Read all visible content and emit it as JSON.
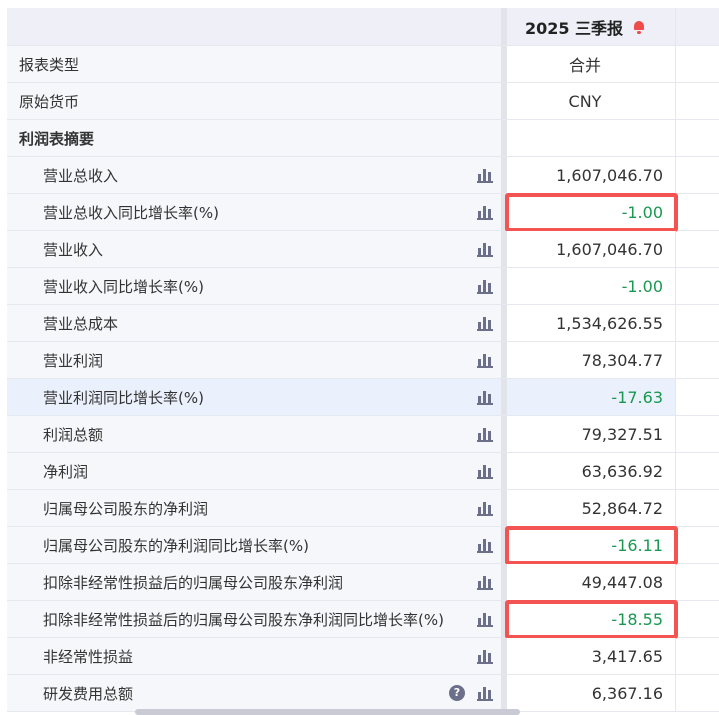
{
  "header": {
    "period": "2025 三季报",
    "alert_icon": "bell-icon",
    "alert_color": "#ef4b4b"
  },
  "rows": [
    {
      "label": "报表类型",
      "value": "合并",
      "type": "meta"
    },
    {
      "label": "原始货币",
      "value": "CNY",
      "type": "meta"
    },
    {
      "label": "利润表摘要",
      "value": "",
      "type": "section"
    },
    {
      "label": "营业总收入",
      "value": "1,607,046.70"
    },
    {
      "label": "营业总收入同比增长率(%)",
      "value": "-1.00",
      "negative": true,
      "boxed": true
    },
    {
      "label": "营业收入",
      "value": "1,607,046.70"
    },
    {
      "label": "营业收入同比增长率(%)",
      "value": "-1.00",
      "negative": true
    },
    {
      "label": "营业总成本",
      "value": "1,534,626.55"
    },
    {
      "label": "营业利润",
      "value": "78,304.77"
    },
    {
      "label": "营业利润同比增长率(%)",
      "value": "-17.63",
      "negative": true,
      "highlighted": true
    },
    {
      "label": "利润总额",
      "value": "79,327.51"
    },
    {
      "label": "净利润",
      "value": "63,636.92"
    },
    {
      "label": "归属母公司股东的净利润",
      "value": "52,864.72"
    },
    {
      "label": "归属母公司股东的净利润同比增长率(%)",
      "value": "-16.11",
      "negative": true,
      "boxed": true
    },
    {
      "label": "扣除非经常性损益后的归属母公司股东净利润",
      "value": "49,447.08"
    },
    {
      "label": "扣除非经常性损益后的归属母公司股东净利润同比增长率(%)",
      "value": "-18.55",
      "negative": true,
      "boxed": true
    },
    {
      "label": "非经常性损益",
      "value": "3,417.65"
    },
    {
      "label": "研发费用总额",
      "value": "6,367.16",
      "help": true
    }
  ],
  "colors": {
    "negative": "#1a9850",
    "highlight_box": "#f35452"
  }
}
